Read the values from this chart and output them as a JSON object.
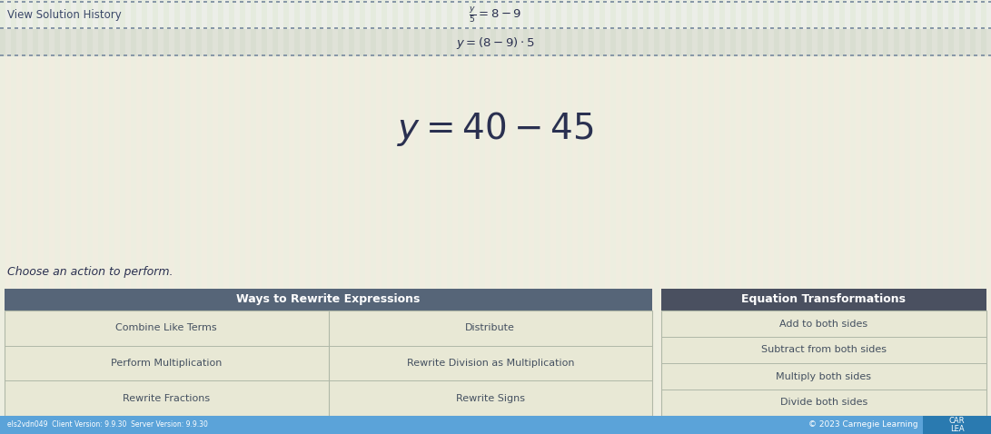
{
  "bg_color": "#f0ede0",
  "stripe_color_light": "#e8f0e0",
  "stripe_color_dark": "#dde8d5",
  "top_section_bg": "#f0ede8",
  "top_section_stripe": "#e0e8d8",
  "header_row1_bg": "#e8e8e0",
  "header_row2_bg": "#dde0d0",
  "view_solution_text": "View Solution History",
  "eq1": "$\\frac{y}{5} =8-9$",
  "eq2": "$y=(8-9) \\cdot 5$",
  "eq3": "y=40−45",
  "choose_action_text": "Choose an action to perform.",
  "ways_header": "Ways to Rewrite Expressions",
  "ways_header_color": "#566578",
  "ways_items_left": [
    "Combine Like Terms",
    "Perform Multiplication",
    "Rewrite Fractions"
  ],
  "ways_items_right": [
    "Distribute",
    "Rewrite Division as Multiplication",
    "Rewrite Signs"
  ],
  "eq_header": "Equation Transformations",
  "eq_header_color": "#4a5060",
  "eq_items": [
    "Add to both sides",
    "Subtract from both sides",
    "Multiply both sides",
    "Divide both sides"
  ],
  "bottom_bar_color": "#5ba3d9",
  "bottom_bar_color2": "#2a7ab0",
  "footer_text": "© 2023 Carnegie Learning",
  "footer_text2": "CAR\nLEA",
  "version_text": "els2vdn049  Client Version: 9.9.30  Server Version: 9.9.30",
  "table_bg": "#e8e8d5",
  "table_line_color": "#b0b8a8",
  "dashed_line_color": "#8090a0",
  "text_color_dark": "#2a3050",
  "text_color_gray": "#445060",
  "text_color_blue": "#3a4868"
}
